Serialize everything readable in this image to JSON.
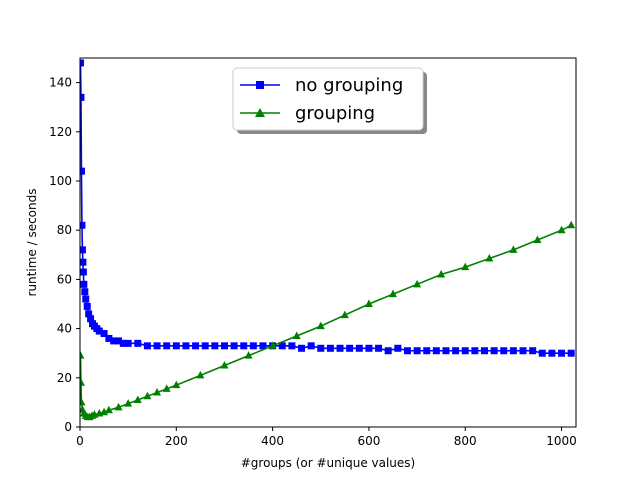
{
  "chart_data": {
    "type": "line",
    "xlabel": "#groups (or #unique values)",
    "ylabel": "runtime / seconds",
    "xlim": [
      0,
      1030
    ],
    "ylim": [
      0,
      150
    ],
    "xticks": [
      0,
      200,
      400,
      600,
      800,
      1000
    ],
    "yticks": [
      0,
      20,
      40,
      60,
      80,
      100,
      120,
      140
    ],
    "grid": false,
    "legend_position": "top-center",
    "series": [
      {
        "name": "no grouping",
        "color": "#0000ff",
        "marker": "square",
        "x": [
          1,
          2,
          3,
          4,
          5,
          6,
          7,
          8,
          10,
          12,
          15,
          18,
          22,
          26,
          30,
          35,
          40,
          50,
          60,
          70,
          80,
          90,
          100,
          120,
          140,
          160,
          180,
          200,
          220,
          240,
          260,
          280,
          300,
          320,
          340,
          360,
          380,
          400,
          420,
          440,
          460,
          480,
          500,
          520,
          540,
          560,
          580,
          600,
          620,
          640,
          660,
          680,
          700,
          720,
          740,
          760,
          780,
          800,
          820,
          840,
          860,
          880,
          900,
          920,
          940,
          960,
          980,
          1000,
          1020
        ],
        "y": [
          148,
          134,
          104,
          82,
          72,
          67,
          63,
          58,
          55,
          52,
          49,
          46,
          44,
          42,
          41,
          40,
          39,
          38,
          36,
          35,
          35,
          34,
          34,
          34,
          33,
          33,
          33,
          33,
          33,
          33,
          33,
          33,
          33,
          33,
          33,
          33,
          33,
          33,
          33,
          33,
          32,
          33,
          32,
          32,
          32,
          32,
          32,
          32,
          32,
          31,
          32,
          31,
          31,
          31,
          31,
          31,
          31,
          31,
          31,
          31,
          31,
          31,
          31,
          31,
          31,
          30,
          30,
          30,
          30
        ]
      },
      {
        "name": "grouping",
        "color": "#008000",
        "marker": "triangle",
        "x": [
          1,
          2,
          3,
          5,
          8,
          12,
          16,
          20,
          25,
          30,
          40,
          50,
          60,
          80,
          100,
          120,
          140,
          160,
          180,
          200,
          250,
          300,
          350,
          400,
          450,
          500,
          550,
          600,
          650,
          700,
          750,
          800,
          850,
          900,
          950,
          1000,
          1020
        ],
        "y": [
          29,
          18,
          10,
          7,
          5.5,
          4.5,
          4,
          4,
          4.5,
          5,
          5.5,
          6,
          6.8,
          8,
          9.5,
          11,
          12.5,
          14,
          15.5,
          17,
          21,
          25,
          29,
          33,
          37,
          41,
          45.5,
          50,
          54,
          58,
          62,
          65,
          68.5,
          72,
          76,
          80,
          82
        ]
      }
    ]
  }
}
